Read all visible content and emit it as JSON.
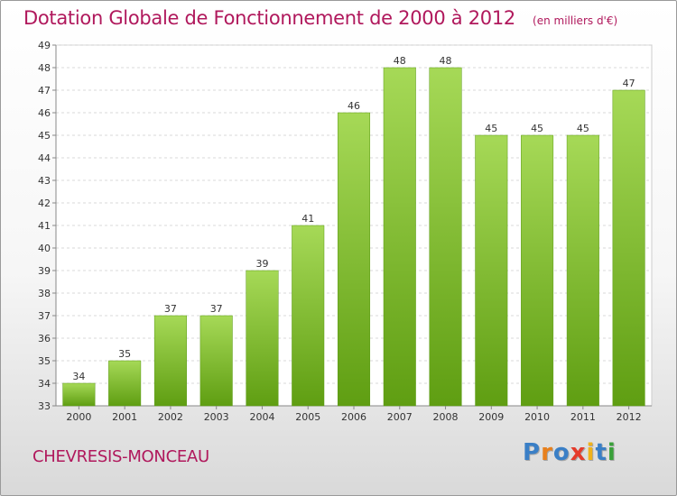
{
  "header": {
    "title": "Dotation Globale de Fonctionnement de 2000 à 2012",
    "subtitle": "(en milliers d'€)"
  },
  "footer": {
    "place": "CHEVRESIS-MONCEAU",
    "logo": [
      "P",
      "r",
      "o",
      "x",
      "i",
      "t",
      "i"
    ],
    "logo_colors": [
      "#3a7fc6",
      "#e8801d",
      "#3a7fc6",
      "#e53b2b",
      "#f0b21a",
      "#3a7fc6",
      "#3aa03a"
    ]
  },
  "chart_data": {
    "type": "bar",
    "title": "Dotation Globale de Fonctionnement de 2000 à 2012",
    "subtitle": "(en milliers d'€)",
    "categories": [
      "2000",
      "2001",
      "2002",
      "2003",
      "2004",
      "2005",
      "2006",
      "2007",
      "2008",
      "2009",
      "2010",
      "2011",
      "2012"
    ],
    "values": [
      34,
      35,
      37,
      37,
      39,
      41,
      46,
      48,
      48,
      45,
      45,
      45,
      47
    ],
    "ylim": [
      33,
      49
    ],
    "yticks": [
      33,
      34,
      35,
      36,
      37,
      38,
      39,
      40,
      41,
      42,
      43,
      44,
      45,
      46,
      47,
      48,
      49
    ],
    "grid": true,
    "bar_color": "#7fbf2f",
    "xlabel": "",
    "ylabel": ""
  }
}
